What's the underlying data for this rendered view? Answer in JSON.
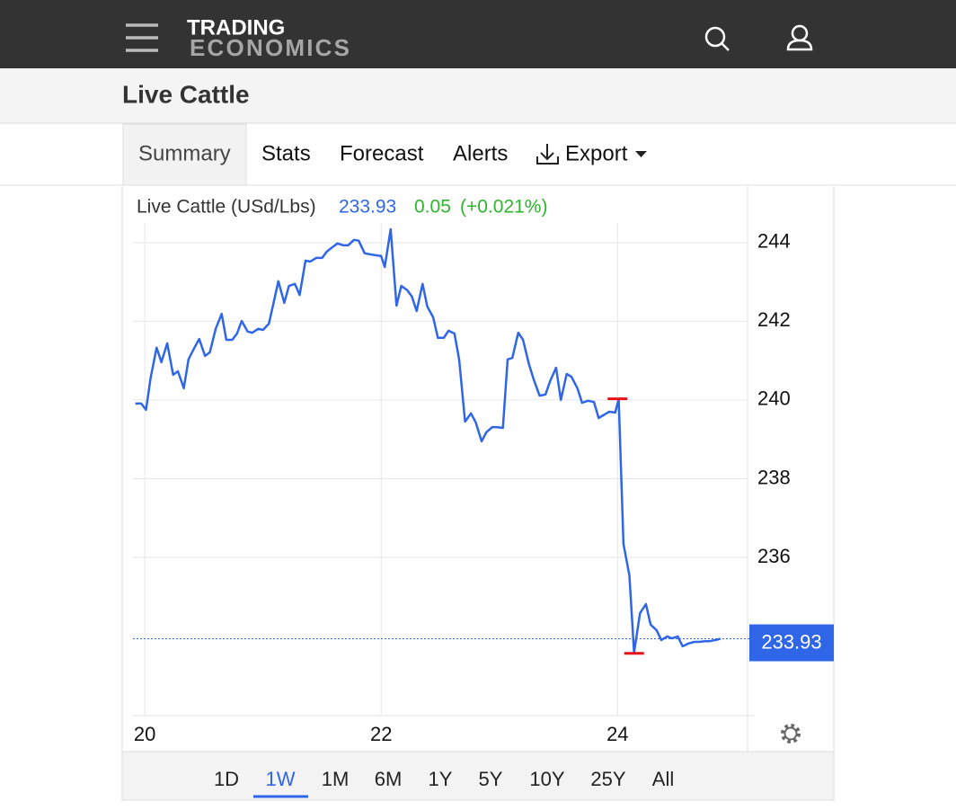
{
  "header": {
    "logo_top": "TRADING",
    "logo_bottom": "ECONOMICS"
  },
  "page_title": "Live Cattle",
  "tabs": [
    "Summary",
    "Stats",
    "Forecast",
    "Alerts",
    "Export"
  ],
  "chart_data": {
    "type": "line",
    "title": "Live Cattle (USd/Lbs)",
    "last_price": 233.93,
    "change": 0.05,
    "change_percent": "(+0.021%)",
    "color": "#2f66e8",
    "x": [
      19.92,
      19.97,
      20.01,
      20.05,
      20.1,
      20.14,
      20.19,
      20.24,
      20.28,
      20.33,
      20.37,
      20.42,
      20.46,
      20.51,
      20.55,
      20.6,
      20.65,
      20.69,
      20.74,
      20.78,
      20.82,
      20.87,
      20.91,
      20.96,
      21.0,
      21.05,
      21.09,
      21.13,
      21.18,
      21.22,
      21.27,
      21.31,
      21.36,
      21.4,
      21.45,
      21.5,
      21.54,
      21.59,
      21.63,
      21.68,
      21.72,
      21.77,
      21.81,
      21.86,
      21.91,
      21.95,
      22.0,
      22.03,
      22.08,
      22.13,
      22.17,
      22.22,
      22.26,
      22.3,
      22.35,
      22.39,
      22.44,
      22.48,
      22.53,
      22.57,
      22.62,
      22.66,
      22.71,
      22.76,
      22.8,
      22.85,
      22.89,
      22.94,
      22.98,
      23.03,
      23.07,
      23.11,
      23.16,
      23.2,
      23.25,
      23.29,
      23.34,
      23.39,
      23.43,
      23.48,
      23.52,
      23.57,
      23.61,
      23.66,
      23.7,
      23.75,
      23.8,
      23.84,
      23.89,
      23.93,
      23.98,
      24.01,
      24.05,
      24.1,
      24.14,
      24.19,
      24.24,
      24.28,
      24.33,
      24.37,
      24.42,
      24.46,
      24.51,
      24.55,
      24.6,
      24.65,
      24.69,
      24.74,
      24.78,
      24.83,
      24.87
    ],
    "values": [
      239.91,
      239.91,
      239.75,
      240.57,
      241.33,
      240.96,
      241.44,
      240.64,
      240.73,
      240.3,
      241.03,
      241.33,
      241.55,
      241.12,
      241.21,
      241.81,
      242.19,
      241.53,
      241.53,
      241.69,
      242.01,
      241.74,
      241.71,
      241.81,
      241.78,
      241.94,
      242.47,
      243.02,
      242.47,
      242.9,
      242.95,
      242.67,
      243.54,
      243.52,
      243.61,
      243.61,
      243.77,
      243.89,
      243.98,
      243.93,
      243.93,
      244.07,
      244.05,
      243.73,
      243.7,
      243.68,
      243.66,
      243.38,
      244.34,
      242.4,
      242.9,
      242.79,
      242.63,
      242.26,
      242.95,
      242.38,
      242.1,
      241.58,
      241.58,
      241.76,
      241.69,
      241.03,
      239.45,
      239.66,
      239.43,
      238.95,
      239.18,
      239.31,
      239.31,
      239.29,
      241.03,
      241.07,
      241.71,
      241.53,
      240.91,
      240.53,
      240.11,
      240.14,
      240.48,
      240.82,
      240.0,
      240.66,
      240.59,
      240.3,
      239.93,
      239.98,
      239.95,
      239.54,
      239.63,
      239.7,
      239.68,
      240.02,
      236.34,
      235.54,
      233.58,
      234.58,
      234.81,
      234.29,
      234.15,
      233.9,
      233.99,
      233.94,
      233.99,
      233.74,
      233.81,
      233.85,
      233.85,
      233.87,
      233.87,
      233.9,
      233.93
    ],
    "markers": [
      {
        "x": 24.0,
        "value": 240.03,
        "color": "#e8101a"
      },
      {
        "x": 24.14,
        "value": 233.56,
        "color": "#e8101a"
      }
    ],
    "xlim": [
      19.9,
      25.1
    ],
    "xticks": [
      20,
      22,
      24
    ],
    "ylim": [
      232,
      244.5
    ],
    "yticks": [
      236,
      238,
      240,
      242,
      244
    ],
    "grid": true,
    "ranges": [
      "1D",
      "1W",
      "1M",
      "6M",
      "1Y",
      "5Y",
      "10Y",
      "25Y",
      "All"
    ],
    "selected_range": 1
  }
}
